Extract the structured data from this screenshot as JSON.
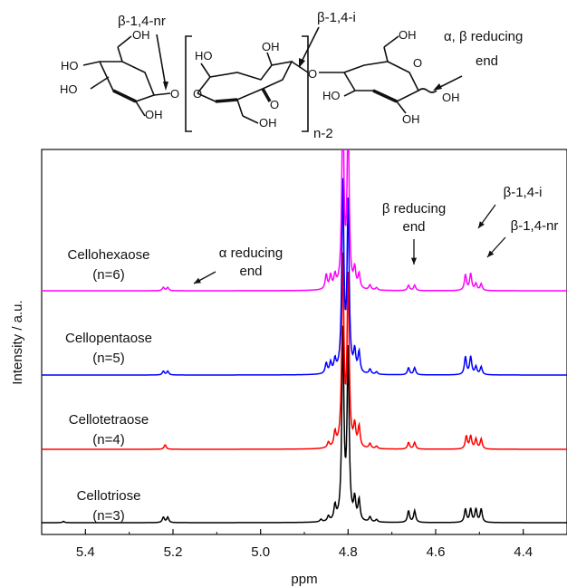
{
  "chart_data": {
    "type": "line",
    "title": "",
    "xlabel": "ppm",
    "ylabel": "Intensity / a.u.",
    "xlim": [
      5.5,
      4.3
    ],
    "x_reversed": true,
    "xticks": [
      "5.4",
      "5.2",
      "5.0",
      "4.8",
      "4.6",
      "4.4"
    ],
    "xtick_values": [
      5.4,
      5.2,
      5.0,
      4.8,
      4.6,
      4.4
    ],
    "grid": false,
    "series": [
      {
        "name": "Cellotriose",
        "label_line1": "Cellotriose",
        "label_line2": "(n=3)",
        "color": "#000000",
        "peaks": [
          [
            5.45,
            0.3
          ],
          [
            5.222,
            1.3
          ],
          [
            5.212,
            1.3
          ],
          [
            4.862,
            0.6
          ],
          [
            4.845,
            1.2
          ],
          [
            4.83,
            3.5
          ],
          [
            4.812,
            45
          ],
          [
            4.8,
            40
          ],
          [
            4.785,
            5
          ],
          [
            4.775,
            5
          ],
          [
            4.75,
            1.2
          ],
          [
            4.735,
            0.6
          ],
          [
            4.662,
            2.8
          ],
          [
            4.648,
            2.8
          ],
          [
            4.532,
            3.2
          ],
          [
            4.52,
            3.2
          ],
          [
            4.508,
            3.2
          ],
          [
            4.496,
            3.2
          ]
        ]
      },
      {
        "name": "Cellotetraose",
        "label_line1": "Cellotetraose",
        "label_line2": "(n=4)",
        "color": "#ff0000",
        "peaks": [
          [
            5.218,
            1.1
          ],
          [
            4.845,
            1.3
          ],
          [
            4.83,
            3.5
          ],
          [
            4.812,
            45
          ],
          [
            4.8,
            40
          ],
          [
            4.785,
            5
          ],
          [
            4.775,
            5
          ],
          [
            4.75,
            1.2
          ],
          [
            4.735,
            0.6
          ],
          [
            4.662,
            1.6
          ],
          [
            4.648,
            1.6
          ],
          [
            4.53,
            3.1
          ],
          [
            4.52,
            3.1
          ],
          [
            4.508,
            2.4
          ],
          [
            4.496,
            2.4
          ]
        ]
      },
      {
        "name": "Cellopentaose",
        "label_line1": "Cellopentaose",
        "label_line2": "(n=5)",
        "color": "#0000ff",
        "peaks": [
          [
            5.222,
            0.9
          ],
          [
            5.212,
            0.9
          ],
          [
            4.85,
            2.5
          ],
          [
            4.84,
            2.5
          ],
          [
            4.83,
            3
          ],
          [
            4.812,
            45
          ],
          [
            4.8,
            40
          ],
          [
            4.785,
            5
          ],
          [
            4.775,
            5
          ],
          [
            4.75,
            1.2
          ],
          [
            4.735,
            0.6
          ],
          [
            4.662,
            1.7
          ],
          [
            4.648,
            1.7
          ],
          [
            4.532,
            4.3
          ],
          [
            4.52,
            4.3
          ],
          [
            4.508,
            1.9
          ],
          [
            4.496,
            1.9
          ]
        ]
      },
      {
        "name": "Cellohexaose",
        "label_line1": "Cellohexaose",
        "label_line2": "(n=6)",
        "color": "#ff00ff",
        "peaks": [
          [
            5.222,
            0.8
          ],
          [
            5.212,
            0.8
          ],
          [
            4.85,
            3.5
          ],
          [
            4.84,
            3.2
          ],
          [
            4.83,
            3
          ],
          [
            4.812,
            45
          ],
          [
            4.8,
            40
          ],
          [
            4.785,
            4.5
          ],
          [
            4.775,
            3.5
          ],
          [
            4.75,
            1.2
          ],
          [
            4.735,
            0.6
          ],
          [
            4.662,
            1.3
          ],
          [
            4.648,
            1.3
          ],
          [
            4.532,
            3.8
          ],
          [
            4.52,
            4.0
          ],
          [
            4.508,
            1.6
          ],
          [
            4.496,
            1.6
          ]
        ]
      }
    ],
    "annotations": [
      {
        "id": "alpha",
        "line1": "α reducing",
        "line2": "end"
      },
      {
        "id": "beta",
        "line1": "β reducing",
        "line2": "end"
      },
      {
        "id": "b14i",
        "line1": "β-1,4-i",
        "line2": ""
      },
      {
        "id": "b14nr",
        "line1": "β-1,4-nr",
        "line2": ""
      }
    ]
  },
  "structure": {
    "label_nr": "β-1,4-nr",
    "label_i": "β-1,4-i",
    "label_red": "α, β reducing",
    "label_red2": "end",
    "n_label": "n-2",
    "atoms": {
      "OH": "OH",
      "HO": "HO",
      "O": "O"
    }
  }
}
